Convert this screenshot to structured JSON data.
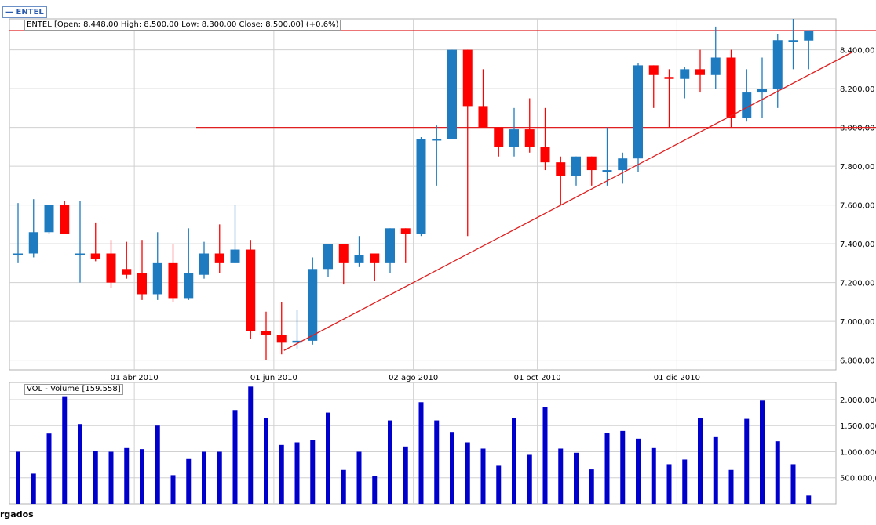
{
  "ticker": "ENTEL",
  "price_label": "ENTEL [Open: 8.448,00  High: 8.500,00  Low: 8.300,00  Close: 8.500,00] (+0,6%)",
  "volume_label": "VOL - Volume [159.558]",
  "bottom_text": "rgados",
  "colors": {
    "up": "#1e7bc0",
    "down": "#ff0000",
    "volume": "#0000cc",
    "trend": "#e02020",
    "grid": "#d0d0d0"
  },
  "chart_data": [
    {
      "type": "candlestick",
      "ylim": [
        6750,
        8560
      ],
      "ytick_values": [
        6800,
        7000,
        7200,
        7400,
        7600,
        7800,
        8000,
        8200,
        8400
      ],
      "ytick_labels": [
        "6.800,00",
        "7.000,00",
        "7.200,00",
        "7.400,00",
        "7.600,00",
        "7.800,00",
        "8.000,00",
        "8.200,00",
        "8.400,00"
      ],
      "xtick_labels": [
        "01 abr 2010",
        "01 jun 2010",
        "02 ago 2010",
        "01 oct 2010",
        "01 dic 2010"
      ],
      "xtick_after_index": [
        7,
        16,
        25,
        33,
        42
      ],
      "grid": true,
      "candles": [
        {
          "o": 7350,
          "h": 7610,
          "l": 7300,
          "c": 7350
        },
        {
          "o": 7350,
          "h": 7630,
          "l": 7330,
          "c": 7460
        },
        {
          "o": 7460,
          "h": 7600,
          "l": 7450,
          "c": 7600
        },
        {
          "o": 7600,
          "h": 7620,
          "l": 7450,
          "c": 7450
        },
        {
          "o": 7350,
          "h": 7620,
          "l": 7200,
          "c": 7350
        },
        {
          "o": 7350,
          "h": 7510,
          "l": 7310,
          "c": 7320
        },
        {
          "o": 7350,
          "h": 7420,
          "l": 7170,
          "c": 7200
        },
        {
          "o": 7270,
          "h": 7410,
          "l": 7220,
          "c": 7240
        },
        {
          "o": 7250,
          "h": 7420,
          "l": 7110,
          "c": 7140
        },
        {
          "o": 7140,
          "h": 7460,
          "l": 7110,
          "c": 7300
        },
        {
          "o": 7300,
          "h": 7400,
          "l": 7100,
          "c": 7120
        },
        {
          "o": 7120,
          "h": 7480,
          "l": 7110,
          "c": 7250
        },
        {
          "o": 7240,
          "h": 7410,
          "l": 7220,
          "c": 7350
        },
        {
          "o": 7350,
          "h": 7500,
          "l": 7250,
          "c": 7300
        },
        {
          "o": 7300,
          "h": 7600,
          "l": 7300,
          "c": 7370
        },
        {
          "o": 7370,
          "h": 7420,
          "l": 6910,
          "c": 6950
        },
        {
          "o": 6950,
          "h": 7050,
          "l": 6800,
          "c": 6930
        },
        {
          "o": 6930,
          "h": 7100,
          "l": 6830,
          "c": 6890
        },
        {
          "o": 6890,
          "h": 7060,
          "l": 6860,
          "c": 6900
        },
        {
          "o": 6900,
          "h": 7330,
          "l": 6880,
          "c": 7270
        },
        {
          "o": 7270,
          "h": 7400,
          "l": 7230,
          "c": 7400
        },
        {
          "o": 7400,
          "h": 7400,
          "l": 7190,
          "c": 7300
        },
        {
          "o": 7300,
          "h": 7440,
          "l": 7280,
          "c": 7340
        },
        {
          "o": 7350,
          "h": 7350,
          "l": 7210,
          "c": 7300
        },
        {
          "o": 7300,
          "h": 7480,
          "l": 7250,
          "c": 7480
        },
        {
          "o": 7480,
          "h": 7480,
          "l": 7300,
          "c": 7450
        },
        {
          "o": 7450,
          "h": 7950,
          "l": 7440,
          "c": 7940
        },
        {
          "o": 7940,
          "h": 8010,
          "l": 7700,
          "c": 7940
        },
        {
          "o": 7940,
          "h": 8400,
          "l": 7940,
          "c": 8400
        },
        {
          "o": 8400,
          "h": 8400,
          "l": 7440,
          "c": 8110
        },
        {
          "o": 8110,
          "h": 8300,
          "l": 8000,
          "c": 8000
        },
        {
          "o": 8000,
          "h": 8000,
          "l": 7850,
          "c": 7900
        },
        {
          "o": 7900,
          "h": 8100,
          "l": 7850,
          "c": 7990
        },
        {
          "o": 7990,
          "h": 8150,
          "l": 7870,
          "c": 7900
        },
        {
          "o": 7900,
          "h": 8100,
          "l": 7780,
          "c": 7820
        },
        {
          "o": 7820,
          "h": 7850,
          "l": 7600,
          "c": 7750
        },
        {
          "o": 7750,
          "h": 7850,
          "l": 7700,
          "c": 7850
        },
        {
          "o": 7850,
          "h": 7850,
          "l": 7700,
          "c": 7780
        },
        {
          "o": 7780,
          "h": 8000,
          "l": 7700,
          "c": 7780
        },
        {
          "o": 7780,
          "h": 7870,
          "l": 7710,
          "c": 7840
        },
        {
          "o": 7840,
          "h": 8330,
          "l": 7770,
          "c": 8320
        },
        {
          "o": 8320,
          "h": 8320,
          "l": 8100,
          "c": 8270
        },
        {
          "o": 8260,
          "h": 8300,
          "l": 8000,
          "c": 8250
        },
        {
          "o": 8250,
          "h": 8310,
          "l": 8150,
          "c": 8300
        },
        {
          "o": 8300,
          "h": 8400,
          "l": 8180,
          "c": 8270
        },
        {
          "o": 8270,
          "h": 8520,
          "l": 8200,
          "c": 8360
        },
        {
          "o": 8360,
          "h": 8400,
          "l": 8000,
          "c": 8050
        },
        {
          "o": 8050,
          "h": 8300,
          "l": 8030,
          "c": 8180
        },
        {
          "o": 8180,
          "h": 8360,
          "l": 8050,
          "c": 8200
        },
        {
          "o": 8200,
          "h": 8480,
          "l": 8100,
          "c": 8450
        },
        {
          "o": 8450,
          "h": 8560,
          "l": 8300,
          "c": 8450
        },
        {
          "o": 8448,
          "h": 8500,
          "l": 8300,
          "c": 8500
        }
      ],
      "hlines": [
        8000,
        8560
      ],
      "trendline": {
        "from_index": 17,
        "from_value": 6850,
        "to_index": 51,
        "to_value": 8270
      }
    },
    {
      "type": "bar",
      "series": [
        {
          "name": "VOL - Volume",
          "values": [
            1000,
            580,
            1350,
            2050,
            1530,
            1010,
            1000,
            1070,
            1050,
            1500,
            550,
            860,
            1000,
            1000,
            1800,
            2250,
            1650,
            1130,
            1180,
            1220,
            1750,
            650,
            1000,
            540,
            1600,
            1100,
            1950,
            1600,
            1380,
            1180,
            1060,
            730,
            1650,
            940,
            1850,
            1060,
            980,
            660,
            1360,
            1400,
            1250,
            1070,
            760,
            850,
            1650,
            1280,
            650,
            1630,
            1980,
            1200,
            760,
            160
          ]
        }
      ],
      "ylim": [
        0,
        2330
      ],
      "ytick_values": [
        500,
        1000,
        1500,
        2000
      ],
      "ytick_labels": [
        "500.000,00",
        "1.000.000,00",
        "1.500.000,00",
        "2.000.000,00"
      ],
      "grid": true
    }
  ]
}
